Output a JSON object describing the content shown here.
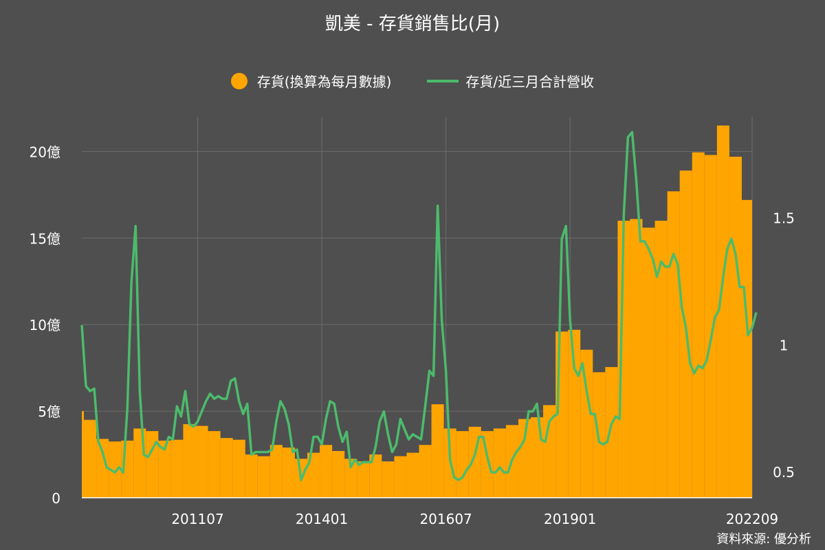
{
  "title": "凱美 - 存貨銷售比(月)",
  "source": "資料來源: 優分析",
  "colors": {
    "background": "#4f4f4f",
    "bar": "#ffa500",
    "line": "#4cbb6c",
    "grid": "#6e6e6e"
  },
  "chart_data": {
    "type": "bar",
    "title": "凱美 - 存貨銷售比(月)",
    "x_start": "2009-03",
    "x_end": "2022-09",
    "x_tick_labels": [
      "201107",
      "201401",
      "201607",
      "201901",
      "202209"
    ],
    "left_axis": {
      "unit": "億",
      "ylim": [
        0,
        22
      ],
      "ticks": [
        0,
        5,
        10,
        15,
        20
      ],
      "tick_labels": [
        "0",
        "5億",
        "10億",
        "15億",
        "20億"
      ]
    },
    "right_axis": {
      "ylim": [
        0.4,
        1.9
      ],
      "ticks": [
        0.5,
        1,
        1.5
      ],
      "tick_labels": [
        "0.5",
        "1",
        "1.5"
      ]
    },
    "legend_position": "top-center",
    "grid": true,
    "series": [
      {
        "name": "存貨(換算為每月數據)",
        "type": "bar",
        "axis": "left",
        "unit": "億",
        "quarterly": [
          [
            "2009-03",
            5.0
          ],
          [
            "2009-06",
            4.5
          ],
          [
            "2009-09",
            3.4
          ],
          [
            "2009-12",
            3.25
          ],
          [
            "2010-03",
            3.3
          ],
          [
            "2010-06",
            4.0
          ],
          [
            "2010-09",
            3.85
          ],
          [
            "2010-12",
            3.3
          ],
          [
            "2011-03",
            3.35
          ],
          [
            "2011-06",
            4.25
          ],
          [
            "2011-09",
            4.15
          ],
          [
            "2011-12",
            3.85
          ],
          [
            "2012-03",
            3.45
          ],
          [
            "2012-06",
            3.35
          ],
          [
            "2012-09",
            2.5
          ],
          [
            "2012-12",
            2.4
          ],
          [
            "2013-03",
            3.05
          ],
          [
            "2013-06",
            2.9
          ],
          [
            "2013-09",
            2.25
          ],
          [
            "2013-12",
            2.6
          ],
          [
            "2014-03",
            3.05
          ],
          [
            "2014-06",
            2.7
          ],
          [
            "2014-09",
            2.25
          ],
          [
            "2014-12",
            2.1
          ],
          [
            "2015-03",
            2.5
          ],
          [
            "2015-06",
            2.1
          ],
          [
            "2015-09",
            2.4
          ],
          [
            "2015-12",
            2.6
          ],
          [
            "2016-03",
            3.05
          ],
          [
            "2016-06",
            5.4
          ],
          [
            "2016-09",
            4.0
          ],
          [
            "2016-12",
            3.85
          ],
          [
            "2017-03",
            4.1
          ],
          [
            "2017-06",
            3.85
          ],
          [
            "2017-09",
            4.0
          ],
          [
            "2017-12",
            4.2
          ],
          [
            "2018-03",
            4.55
          ],
          [
            "2018-06",
            4.65
          ],
          [
            "2018-09",
            5.35
          ],
          [
            "2018-12",
            9.6
          ],
          [
            "2019-03",
            9.7
          ],
          [
            "2019-06",
            8.55
          ],
          [
            "2019-09",
            7.25
          ],
          [
            "2019-12",
            7.55
          ],
          [
            "2020-03",
            16.0
          ],
          [
            "2020-06",
            16.1
          ],
          [
            "2020-09",
            15.6
          ],
          [
            "2020-12",
            16.0
          ],
          [
            "2021-03",
            17.7
          ],
          [
            "2021-06",
            18.9
          ],
          [
            "2021-09",
            19.95
          ],
          [
            "2021-12",
            19.8
          ],
          [
            "2022-03",
            21.5
          ],
          [
            "2022-06",
            19.7
          ],
          [
            "2022-09",
            17.2
          ]
        ]
      },
      {
        "name": "存貨/近三月合計營收",
        "type": "line",
        "axis": "right",
        "monthly": [
          [
            "2009-03",
            1.08
          ],
          [
            "2009-04",
            0.84
          ],
          [
            "2009-05",
            0.82
          ],
          [
            "2009-06",
            0.83
          ],
          [
            "2009-07",
            0.62
          ],
          [
            "2009-08",
            0.58
          ],
          [
            "2009-09",
            0.52
          ],
          [
            "2009-10",
            0.51
          ],
          [
            "2009-11",
            0.5
          ],
          [
            "2009-12",
            0.52
          ],
          [
            "2010-01",
            0.5
          ],
          [
            "2010-02",
            0.75
          ],
          [
            "2010-03",
            1.25
          ],
          [
            "2010-04",
            1.47
          ],
          [
            "2010-05",
            0.82
          ],
          [
            "2010-06",
            0.57
          ],
          [
            "2010-07",
            0.56
          ],
          [
            "2010-08",
            0.59
          ],
          [
            "2010-09",
            0.62
          ],
          [
            "2010-10",
            0.6
          ],
          [
            "2010-11",
            0.59
          ],
          [
            "2010-12",
            0.64
          ],
          [
            "2011-01",
            0.63
          ],
          [
            "2011-02",
            0.76
          ],
          [
            "2011-03",
            0.72
          ],
          [
            "2011-04",
            0.82
          ],
          [
            "2011-05",
            0.69
          ],
          [
            "2011-06",
            0.68
          ],
          [
            "2011-07",
            0.7
          ],
          [
            "2011-08",
            0.74
          ],
          [
            "2011-09",
            0.78
          ],
          [
            "2011-10",
            0.81
          ],
          [
            "2011-11",
            0.79
          ],
          [
            "2011-12",
            0.8
          ],
          [
            "2012-01",
            0.79
          ],
          [
            "2012-02",
            0.79
          ],
          [
            "2012-03",
            0.86
          ],
          [
            "2012-04",
            0.87
          ],
          [
            "2012-05",
            0.78
          ],
          [
            "2012-06",
            0.73
          ],
          [
            "2012-07",
            0.77
          ],
          [
            "2012-08",
            0.57
          ],
          [
            "2012-09",
            0.58
          ],
          [
            "2012-10",
            0.58
          ],
          [
            "2012-11",
            0.58
          ],
          [
            "2012-12",
            0.58
          ],
          [
            "2013-01",
            0.59
          ],
          [
            "2013-02",
            0.7
          ],
          [
            "2013-03",
            0.78
          ],
          [
            "2013-04",
            0.75
          ],
          [
            "2013-05",
            0.69
          ],
          [
            "2013-06",
            0.58
          ],
          [
            "2013-07",
            0.59
          ],
          [
            "2013-08",
            0.47
          ],
          [
            "2013-09",
            0.51
          ],
          [
            "2013-10",
            0.54
          ],
          [
            "2013-11",
            0.64
          ],
          [
            "2013-12",
            0.64
          ],
          [
            "2014-01",
            0.61
          ],
          [
            "2014-02",
            0.71
          ],
          [
            "2014-03",
            0.78
          ],
          [
            "2014-04",
            0.77
          ],
          [
            "2014-05",
            0.68
          ],
          [
            "2014-06",
            0.62
          ],
          [
            "2014-07",
            0.66
          ],
          [
            "2014-08",
            0.52
          ],
          [
            "2014-09",
            0.55
          ],
          [
            "2014-10",
            0.53
          ],
          [
            "2014-11",
            0.54
          ],
          [
            "2014-12",
            0.54
          ],
          [
            "2015-01",
            0.54
          ],
          [
            "2015-02",
            0.6
          ],
          [
            "2015-03",
            0.7
          ],
          [
            "2015-04",
            0.74
          ],
          [
            "2015-05",
            0.65
          ],
          [
            "2015-06",
            0.58
          ],
          [
            "2015-07",
            0.61
          ],
          [
            "2015-08",
            0.71
          ],
          [
            "2015-09",
            0.67
          ],
          [
            "2015-10",
            0.63
          ],
          [
            "2015-11",
            0.65
          ],
          [
            "2015-12",
            0.64
          ],
          [
            "2016-01",
            0.63
          ],
          [
            "2016-02",
            0.76
          ],
          [
            "2016-03",
            0.9
          ],
          [
            "2016-04",
            0.88
          ],
          [
            "2016-05",
            1.55
          ],
          [
            "2016-06",
            1.1
          ],
          [
            "2016-07",
            0.9
          ],
          [
            "2016-08",
            0.55
          ],
          [
            "2016-09",
            0.48
          ],
          [
            "2016-10",
            0.47
          ],
          [
            "2016-11",
            0.48
          ],
          [
            "2016-12",
            0.51
          ],
          [
            "2017-01",
            0.53
          ],
          [
            "2017-02",
            0.57
          ],
          [
            "2017-03",
            0.64
          ],
          [
            "2017-04",
            0.64
          ],
          [
            "2017-05",
            0.56
          ],
          [
            "2017-06",
            0.5
          ],
          [
            "2017-07",
            0.5
          ],
          [
            "2017-08",
            0.52
          ],
          [
            "2017-09",
            0.5
          ],
          [
            "2017-10",
            0.5
          ],
          [
            "2017-11",
            0.55
          ],
          [
            "2017-12",
            0.58
          ],
          [
            "2018-01",
            0.6
          ],
          [
            "2018-02",
            0.63
          ],
          [
            "2018-03",
            0.74
          ],
          [
            "2018-04",
            0.74
          ],
          [
            "2018-05",
            0.77
          ],
          [
            "2018-06",
            0.63
          ],
          [
            "2018-07",
            0.62
          ],
          [
            "2018-08",
            0.7
          ],
          [
            "2018-09",
            0.72
          ],
          [
            "2018-10",
            0.73
          ],
          [
            "2018-11",
            1.42
          ],
          [
            "2018-12",
            1.47
          ],
          [
            "2019-01",
            1.1
          ],
          [
            "2019-02",
            0.91
          ],
          [
            "2019-03",
            0.88
          ],
          [
            "2019-04",
            0.93
          ],
          [
            "2019-05",
            0.82
          ],
          [
            "2019-06",
            0.73
          ],
          [
            "2019-07",
            0.73
          ],
          [
            "2019-08",
            0.62
          ],
          [
            "2019-09",
            0.61
          ],
          [
            "2019-10",
            0.62
          ],
          [
            "2019-11",
            0.69
          ],
          [
            "2019-12",
            0.72
          ],
          [
            "2020-01",
            0.71
          ],
          [
            "2020-02",
            1.52
          ],
          [
            "2020-03",
            1.82
          ],
          [
            "2020-04",
            1.84
          ],
          [
            "2020-05",
            1.65
          ],
          [
            "2020-06",
            1.41
          ],
          [
            "2020-07",
            1.41
          ],
          [
            "2020-08",
            1.38
          ],
          [
            "2020-09",
            1.34
          ],
          [
            "2020-10",
            1.27
          ],
          [
            "2020-11",
            1.33
          ],
          [
            "2020-12",
            1.31
          ],
          [
            "2021-01",
            1.31
          ],
          [
            "2021-02",
            1.36
          ],
          [
            "2021-03",
            1.32
          ],
          [
            "2021-04",
            1.15
          ],
          [
            "2021-05",
            1.07
          ],
          [
            "2021-06",
            0.93
          ],
          [
            "2021-07",
            0.89
          ],
          [
            "2021-08",
            0.92
          ],
          [
            "2021-09",
            0.91
          ],
          [
            "2021-10",
            0.94
          ],
          [
            "2021-11",
            1.02
          ],
          [
            "2021-12",
            1.11
          ],
          [
            "2022-01",
            1.14
          ],
          [
            "2022-02",
            1.27
          ],
          [
            "2022-03",
            1.38
          ],
          [
            "2022-04",
            1.42
          ],
          [
            "2022-05",
            1.36
          ],
          [
            "2022-06",
            1.23
          ],
          [
            "2022-07",
            1.23
          ],
          [
            "2022-08",
            1.04
          ],
          [
            "2022-09",
            1.07
          ],
          [
            "2022-10",
            1.13
          ]
        ]
      }
    ]
  }
}
